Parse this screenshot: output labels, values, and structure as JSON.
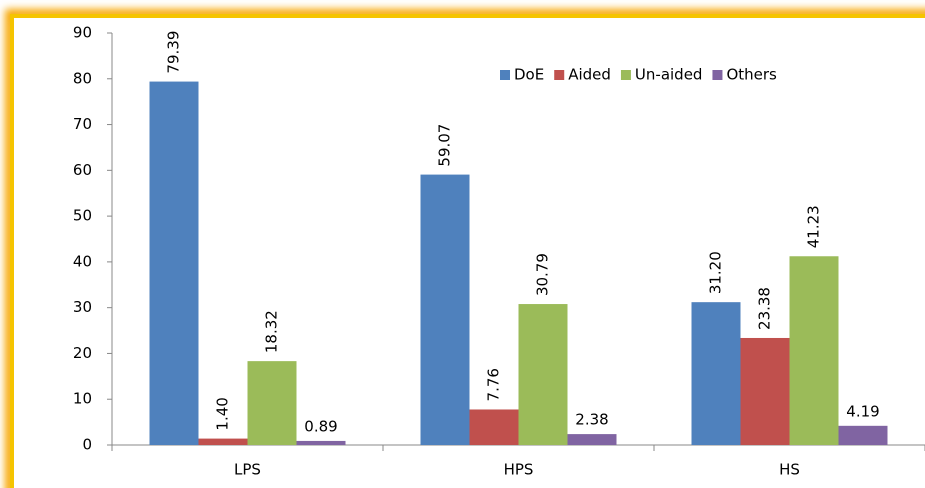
{
  "chart_data": {
    "type": "bar",
    "categories": [
      "LPS",
      "HPS",
      "HS"
    ],
    "series": [
      {
        "name": "DoE",
        "color": "#4f81bd",
        "values": [
          79.39,
          59.07,
          31.2
        ],
        "value_labels": [
          "79.39",
          "59.07",
          "31.20"
        ]
      },
      {
        "name": "Aided",
        "color": "#c0504d",
        "values": [
          1.4,
          7.76,
          23.38
        ],
        "value_labels": [
          "1.40",
          "7.76",
          "23.38"
        ]
      },
      {
        "name": "Un-aided",
        "color": "#9bbb59",
        "values": [
          18.32,
          30.79,
          41.23
        ],
        "value_labels": [
          "18.32",
          "30.79",
          "41.23"
        ]
      },
      {
        "name": "Others",
        "color": "#8064a2",
        "values": [
          0.89,
          2.38,
          4.19
        ],
        "value_labels": [
          "0.89",
          "2.38",
          "4.19"
        ]
      }
    ],
    "ylim": [
      0,
      90
    ],
    "yticks": [
      0,
      10,
      20,
      30,
      40,
      50,
      60,
      70,
      80,
      90
    ],
    "grid": false,
    "legend": "top-right"
  }
}
